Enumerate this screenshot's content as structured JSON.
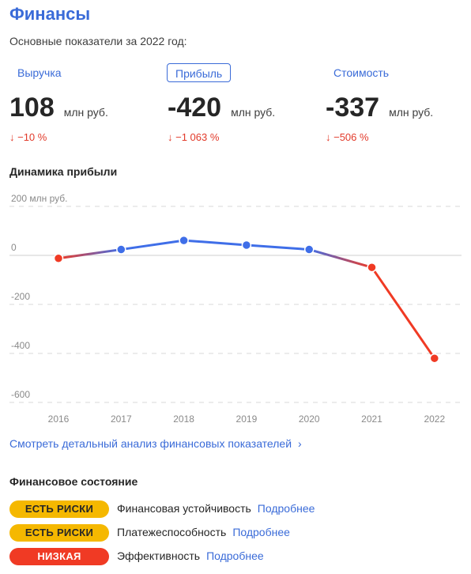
{
  "header": {
    "title": "Финансы",
    "subtitle": "Основные показатели за 2022 год:"
  },
  "tabs": [
    {
      "label": "Выручка",
      "active": false
    },
    {
      "label": "Прибыль",
      "active": true
    },
    {
      "label": "Стоимость",
      "active": false
    }
  ],
  "metrics": [
    {
      "value": "108",
      "unit": "млн руб.",
      "delta": "↓ −10 %"
    },
    {
      "value": "-420",
      "unit": "млн руб.",
      "delta": "↓ −1 063 %"
    },
    {
      "value": "-337",
      "unit": "млн руб.",
      "delta": "↓ −506 %"
    }
  ],
  "chart_section": {
    "title": "Динамика прибыли"
  },
  "chart_data": {
    "type": "line",
    "title": "Динамика прибыли",
    "unit_label": "200 млн руб.",
    "x": [
      "2016",
      "2017",
      "2018",
      "2019",
      "2020",
      "2021",
      "2022"
    ],
    "values": [
      -12,
      24,
      61,
      42,
      24,
      -49,
      -420
    ],
    "y_ticks": [
      "0",
      "-200",
      "-400",
      "-600"
    ],
    "ylim": [
      -600,
      200
    ],
    "grid": true,
    "colors": {
      "positive": "#3f6ee8",
      "negative": "#f03a24",
      "grid": "#d9d9d9",
      "zero_line": "#cfcfcf"
    }
  },
  "detail_link": {
    "label": "Смотреть детальный анализ финансовых показателей",
    "chevron": "›"
  },
  "status_section": {
    "title": "Финансовое состояние",
    "rows": [
      {
        "badge": "ЕСТЬ РИСКИ",
        "badge_color": "#f5b800",
        "badge_text_color": "#262626",
        "label": "Финансовая устойчивость",
        "more": "Подробнее"
      },
      {
        "badge": "ЕСТЬ РИСКИ",
        "badge_color": "#f5b800",
        "badge_text_color": "#262626",
        "label": "Платежеспособность",
        "more": "Подробнее"
      },
      {
        "badge": "НИЗКАЯ",
        "badge_color": "#f03a24",
        "badge_text_color": "#ffffff",
        "label": "Эффективность",
        "more": "Подробнее"
      }
    ]
  }
}
